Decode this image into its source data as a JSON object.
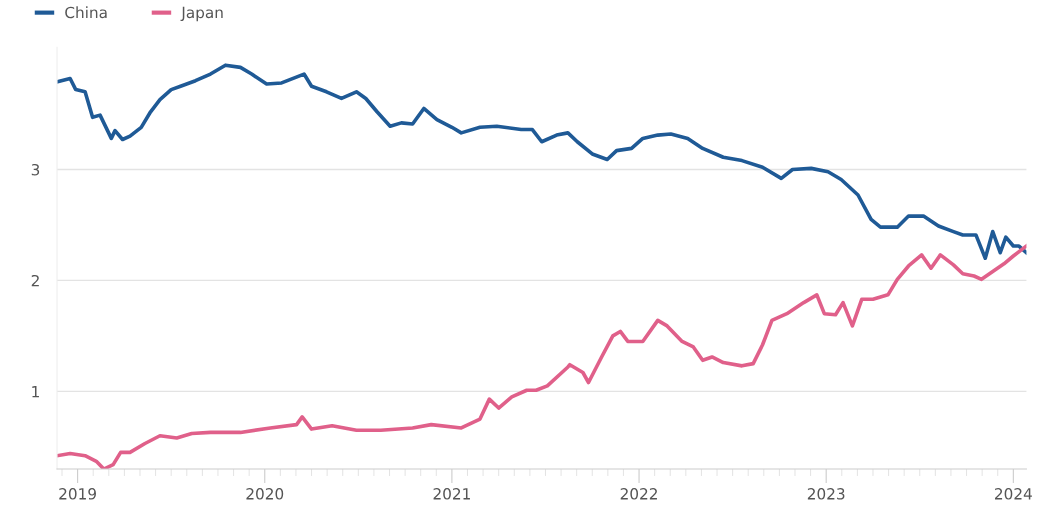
{
  "chart_data": {
    "type": "line",
    "xlim": [
      2018.89,
      2024.07
    ],
    "xticks": [
      2019,
      2020,
      2021,
      2022,
      2023,
      2024
    ],
    "ylim": [
      0.3,
      4.1
    ],
    "yticks": [
      1,
      2,
      3
    ],
    "grid": "y",
    "legend": "top left",
    "marker": "none",
    "line_style": "solid",
    "series": [
      {
        "name": "China",
        "color": "#1f5a96",
        "x": [
          2018.89,
          2018.96,
          2018.99,
          2019.04,
          2019.08,
          2019.12,
          2019.18,
          2019.2,
          2019.24,
          2019.28,
          2019.34,
          2019.39,
          2019.44,
          2019.5,
          2019.55,
          2019.63,
          2019.71,
          2019.79,
          2019.87,
          2019.93,
          2020.01,
          2020.09,
          2020.21,
          2020.25,
          2020.33,
          2020.41,
          2020.49,
          2020.54,
          2020.6,
          2020.67,
          2020.73,
          2020.79,
          2020.85,
          2020.92,
          2021.0,
          2021.05,
          2021.15,
          2021.24,
          2021.37,
          2021.43,
          2021.48,
          2021.56,
          2021.62,
          2021.67,
          2021.75,
          2021.83,
          2021.88,
          2021.96,
          2022.02,
          2022.1,
          2022.17,
          2022.26,
          2022.34,
          2022.45,
          2022.55,
          2022.66,
          2022.76,
          2022.82,
          2022.92,
          2023.01,
          2023.08,
          2023.17,
          2023.24,
          2023.29,
          2023.38,
          2023.44,
          2023.52,
          2023.6,
          2023.68,
          2023.73,
          2023.8,
          2023.85,
          2023.89,
          2023.93,
          2023.96,
          2024.0,
          2024.03,
          2024.07
        ],
        "values": [
          3.79,
          3.82,
          3.72,
          3.7,
          3.47,
          3.49,
          3.28,
          3.35,
          3.27,
          3.3,
          3.38,
          3.52,
          3.63,
          3.72,
          3.75,
          3.8,
          3.86,
          3.94,
          3.92,
          3.86,
          3.77,
          3.78,
          3.86,
          3.75,
          3.7,
          3.64,
          3.7,
          3.64,
          3.52,
          3.39,
          3.42,
          3.41,
          3.55,
          3.45,
          3.38,
          3.33,
          3.38,
          3.39,
          3.36,
          3.36,
          3.25,
          3.31,
          3.33,
          3.25,
          3.14,
          3.09,
          3.17,
          3.19,
          3.28,
          3.31,
          3.32,
          3.28,
          3.19,
          3.11,
          3.08,
          3.02,
          2.92,
          3.0,
          3.01,
          2.98,
          2.91,
          2.77,
          2.55,
          2.48,
          2.48,
          2.58,
          2.58,
          2.49,
          2.44,
          2.41,
          2.41,
          2.2,
          2.44,
          2.25,
          2.39,
          2.31,
          2.31,
          2.25
        ]
      },
      {
        "name": "Japan",
        "color": "#e0608a",
        "x": [
          2018.89,
          2018.96,
          2019.04,
          2019.1,
          2019.14,
          2019.19,
          2019.23,
          2019.28,
          2019.36,
          2019.44,
          2019.53,
          2019.61,
          2019.71,
          2019.87,
          2020.03,
          2020.17,
          2020.2,
          2020.25,
          2020.36,
          2020.49,
          2020.62,
          2020.79,
          2020.89,
          2021.05,
          2021.15,
          2021.2,
          2021.25,
          2021.32,
          2021.4,
          2021.45,
          2021.51,
          2021.62,
          2021.63,
          2021.7,
          2021.73,
          2021.8,
          2021.86,
          2021.9,
          2021.94,
          2022.02,
          2022.1,
          2022.15,
          2022.23,
          2022.29,
          2022.34,
          2022.39,
          2022.45,
          2022.55,
          2022.61,
          2022.66,
          2022.71,
          2022.79,
          2022.88,
          2022.95,
          2022.99,
          2023.05,
          2023.09,
          2023.14,
          2023.19,
          2023.25,
          2023.33,
          2023.38,
          2023.44,
          2023.51,
          2023.56,
          2023.61,
          2023.68,
          2023.73,
          2023.79,
          2023.83,
          2023.89,
          2023.95,
          2024.0,
          2024.07
        ],
        "values": [
          0.42,
          0.44,
          0.42,
          0.37,
          0.3,
          0.34,
          0.45,
          0.45,
          0.53,
          0.6,
          0.58,
          0.62,
          0.63,
          0.63,
          0.67,
          0.7,
          0.77,
          0.66,
          0.69,
          0.65,
          0.65,
          0.67,
          0.7,
          0.67,
          0.75,
          0.93,
          0.85,
          0.95,
          1.01,
          1.01,
          1.05,
          1.22,
          1.24,
          1.17,
          1.08,
          1.31,
          1.5,
          1.54,
          1.45,
          1.45,
          1.64,
          1.59,
          1.45,
          1.4,
          1.28,
          1.31,
          1.26,
          1.23,
          1.25,
          1.42,
          1.64,
          1.7,
          1.8,
          1.87,
          1.7,
          1.69,
          1.8,
          1.59,
          1.83,
          1.83,
          1.87,
          2.01,
          2.13,
          2.23,
          2.11,
          2.23,
          2.14,
          2.06,
          2.04,
          2.01,
          2.08,
          2.15,
          2.22,
          2.31
        ]
      }
    ]
  }
}
